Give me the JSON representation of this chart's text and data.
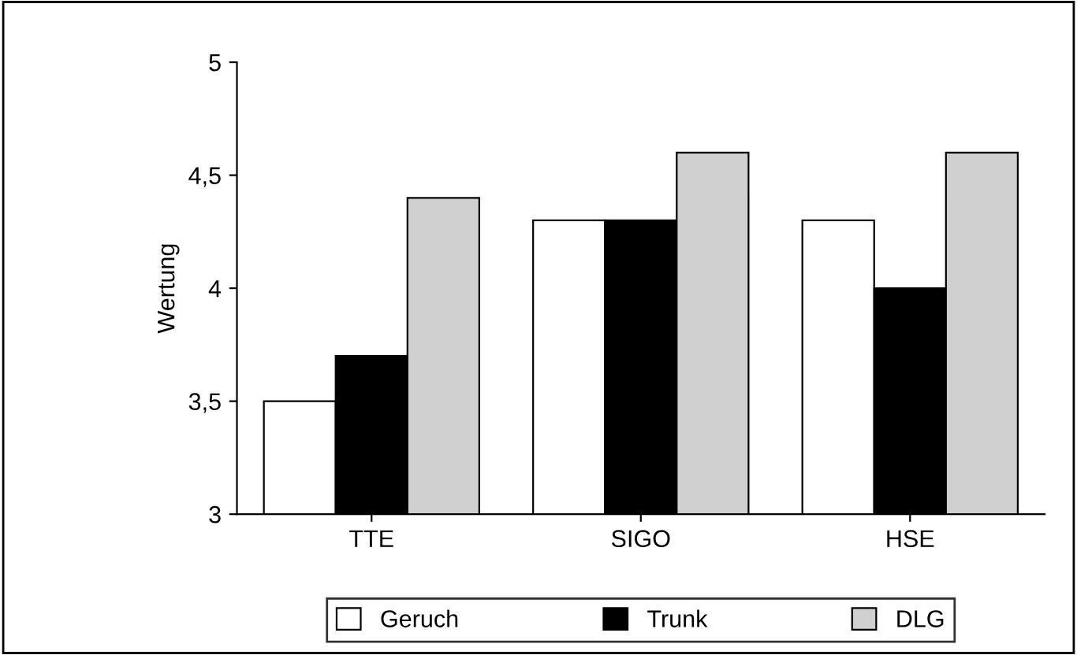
{
  "chart_data": {
    "type": "bar",
    "ylabel": "Wertung",
    "categories": [
      "TTE",
      "SIGO",
      "HSE"
    ],
    "series": [
      {
        "name": "Geruch",
        "color": "#ffffff",
        "values": [
          3.5,
          4.3,
          4.3
        ]
      },
      {
        "name": "Trunk",
        "color": "#000000",
        "values": [
          3.7,
          4.3,
          4.0
        ]
      },
      {
        "name": "DLG",
        "color": "#d0d0d0",
        "values": [
          4.4,
          4.6,
          4.6
        ]
      }
    ],
    "ylim": [
      3,
      5
    ],
    "yticks": [
      3,
      {
        "value": 3.5,
        "label": "3,5"
      },
      4,
      {
        "value": 4.5,
        "label": "4,5"
      },
      5
    ],
    "grid": false,
    "legend": "bottom"
  }
}
